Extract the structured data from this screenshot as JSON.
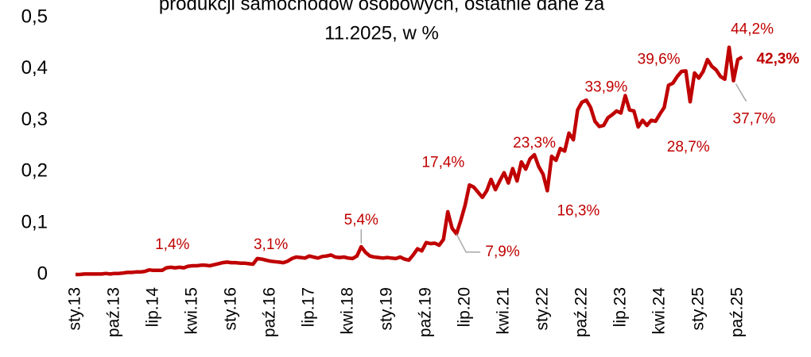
{
  "chart_data": {
    "type": "line",
    "title": [
      "produkcji samochodów osobowych, ostatnie dane za",
      "11.2025, w %"
    ],
    "categories": [
      "sty.13",
      null,
      null,
      null,
      null,
      null,
      null,
      null,
      null,
      "paź.13",
      null,
      null,
      null,
      null,
      null,
      null,
      null,
      null,
      "lip.14",
      null,
      null,
      null,
      null,
      null,
      null,
      null,
      null,
      "kwi.15",
      null,
      null,
      null,
      null,
      null,
      null,
      null,
      null,
      "sty.16",
      null,
      null,
      null,
      null,
      null,
      null,
      null,
      null,
      "paź.16",
      null,
      null,
      null,
      null,
      null,
      null,
      null,
      null,
      "lip.17",
      null,
      null,
      null,
      null,
      null,
      null,
      null,
      null,
      "kwi.18",
      null,
      null,
      null,
      null,
      null,
      null,
      null,
      null,
      "sty.19",
      null,
      null,
      null,
      null,
      null,
      null,
      null,
      null,
      "paź.19",
      null,
      null,
      null,
      null,
      null,
      null,
      null,
      null,
      "lip.20",
      null,
      null,
      null,
      null,
      null,
      null,
      null,
      null,
      "kwi.21",
      null,
      null,
      null,
      null,
      null,
      null,
      null,
      null,
      "sty.22",
      null,
      null,
      null,
      null,
      null,
      null,
      null,
      null,
      "paź.22",
      null,
      null,
      null,
      null,
      null,
      null,
      null,
      null,
      "lip.23",
      null,
      null,
      null,
      null,
      null,
      null,
      null,
      null,
      "kwi.24",
      null,
      null,
      null,
      null,
      null,
      null,
      null,
      null,
      "sty.25",
      null,
      null,
      null,
      null,
      null,
      null,
      null,
      null,
      "paź.25",
      null
    ],
    "series": [
      {
        "color": "#c00000",
        "values": [
          0.0,
          0.0,
          0.001,
          0.001,
          0.001,
          0.001,
          0.001,
          0.002,
          0.001,
          0.002,
          0.002,
          0.003,
          0.004,
          0.004,
          0.005,
          0.005,
          0.006,
          0.009,
          0.008,
          0.008,
          0.008,
          0.013,
          0.014,
          0.013,
          0.014,
          0.013,
          0.016,
          0.017,
          0.017,
          0.018,
          0.018,
          0.017,
          0.019,
          0.021,
          0.023,
          0.024,
          0.023,
          0.023,
          0.022,
          0.022,
          0.021,
          0.02,
          0.031,
          0.03,
          0.028,
          0.026,
          0.025,
          0.024,
          0.023,
          0.026,
          0.031,
          0.034,
          0.033,
          0.032,
          0.036,
          0.034,
          0.032,
          0.035,
          0.036,
          0.038,
          0.034,
          0.033,
          0.034,
          0.032,
          0.031,
          0.036,
          0.054,
          0.043,
          0.036,
          0.034,
          0.033,
          0.032,
          0.033,
          0.032,
          0.031,
          0.034,
          0.03,
          0.028,
          0.038,
          0.05,
          0.046,
          0.062,
          0.06,
          0.061,
          0.057,
          0.068,
          0.122,
          0.09,
          0.079,
          0.105,
          0.135,
          0.174,
          0.17,
          0.16,
          0.15,
          0.163,
          0.185,
          0.165,
          0.182,
          0.198,
          0.178,
          0.206,
          0.182,
          0.219,
          0.205,
          0.225,
          0.233,
          0.21,
          0.195,
          0.163,
          0.23,
          0.222,
          0.245,
          0.24,
          0.275,
          0.262,
          0.32,
          0.335,
          0.339,
          0.325,
          0.298,
          0.288,
          0.29,
          0.305,
          0.311,
          0.318,
          0.314,
          0.348,
          0.32,
          0.318,
          0.287,
          0.3,
          0.29,
          0.3,
          0.298,
          0.312,
          0.325,
          0.368,
          0.372,
          0.385,
          0.395,
          0.396,
          0.336,
          0.392,
          0.382,
          0.395,
          0.418,
          0.405,
          0.398,
          0.385,
          0.38,
          0.442,
          0.377,
          0.418,
          0.423
        ],
        "value_labels": [
          null,
          null,
          null,
          null,
          null,
          null,
          null,
          null,
          null,
          null,
          null,
          null,
          null,
          null,
          null,
          null,
          null,
          null,
          null,
          null,
          null,
          null,
          "1,4%",
          null,
          null,
          null,
          null,
          null,
          null,
          null,
          null,
          null,
          null,
          null,
          null,
          null,
          null,
          null,
          null,
          null,
          null,
          null,
          "3,1%",
          null,
          null,
          null,
          null,
          null,
          null,
          null,
          null,
          null,
          null,
          null,
          null,
          null,
          null,
          null,
          null,
          null,
          null,
          null,
          null,
          null,
          null,
          null,
          "5,4%",
          null,
          null,
          null,
          null,
          null,
          null,
          null,
          null,
          null,
          null,
          null,
          null,
          null,
          null,
          null,
          null,
          null,
          null,
          null,
          null,
          null,
          "7,9%",
          null,
          null,
          "17,4%",
          null,
          null,
          null,
          null,
          null,
          null,
          null,
          null,
          null,
          null,
          null,
          null,
          null,
          null,
          "23,3%",
          null,
          null,
          "16,3%",
          null,
          null,
          null,
          null,
          null,
          null,
          null,
          null,
          "33,9%",
          null,
          null,
          null,
          null,
          null,
          null,
          null,
          null,
          null,
          null,
          null,
          "28,7%",
          null,
          null,
          null,
          null,
          null,
          null,
          null,
          null,
          null,
          null,
          "39,6%",
          null,
          null,
          null,
          null,
          null,
          null,
          null,
          null,
          null,
          "44,2%",
          "37,7%",
          null,
          "42,3%"
        ]
      }
    ],
    "ylim": [
      0,
      0.5
    ],
    "yticks": [
      0,
      {
        "value": 0.1,
        "label": "0,1"
      },
      {
        "value": 0.2,
        "label": "0,2"
      },
      {
        "value": 0.3,
        "label": "0,3"
      },
      {
        "value": 0.4,
        "label": "0,4"
      },
      {
        "value": 0.5,
        "label": "0,5"
      }
    ],
    "grid": false
  }
}
